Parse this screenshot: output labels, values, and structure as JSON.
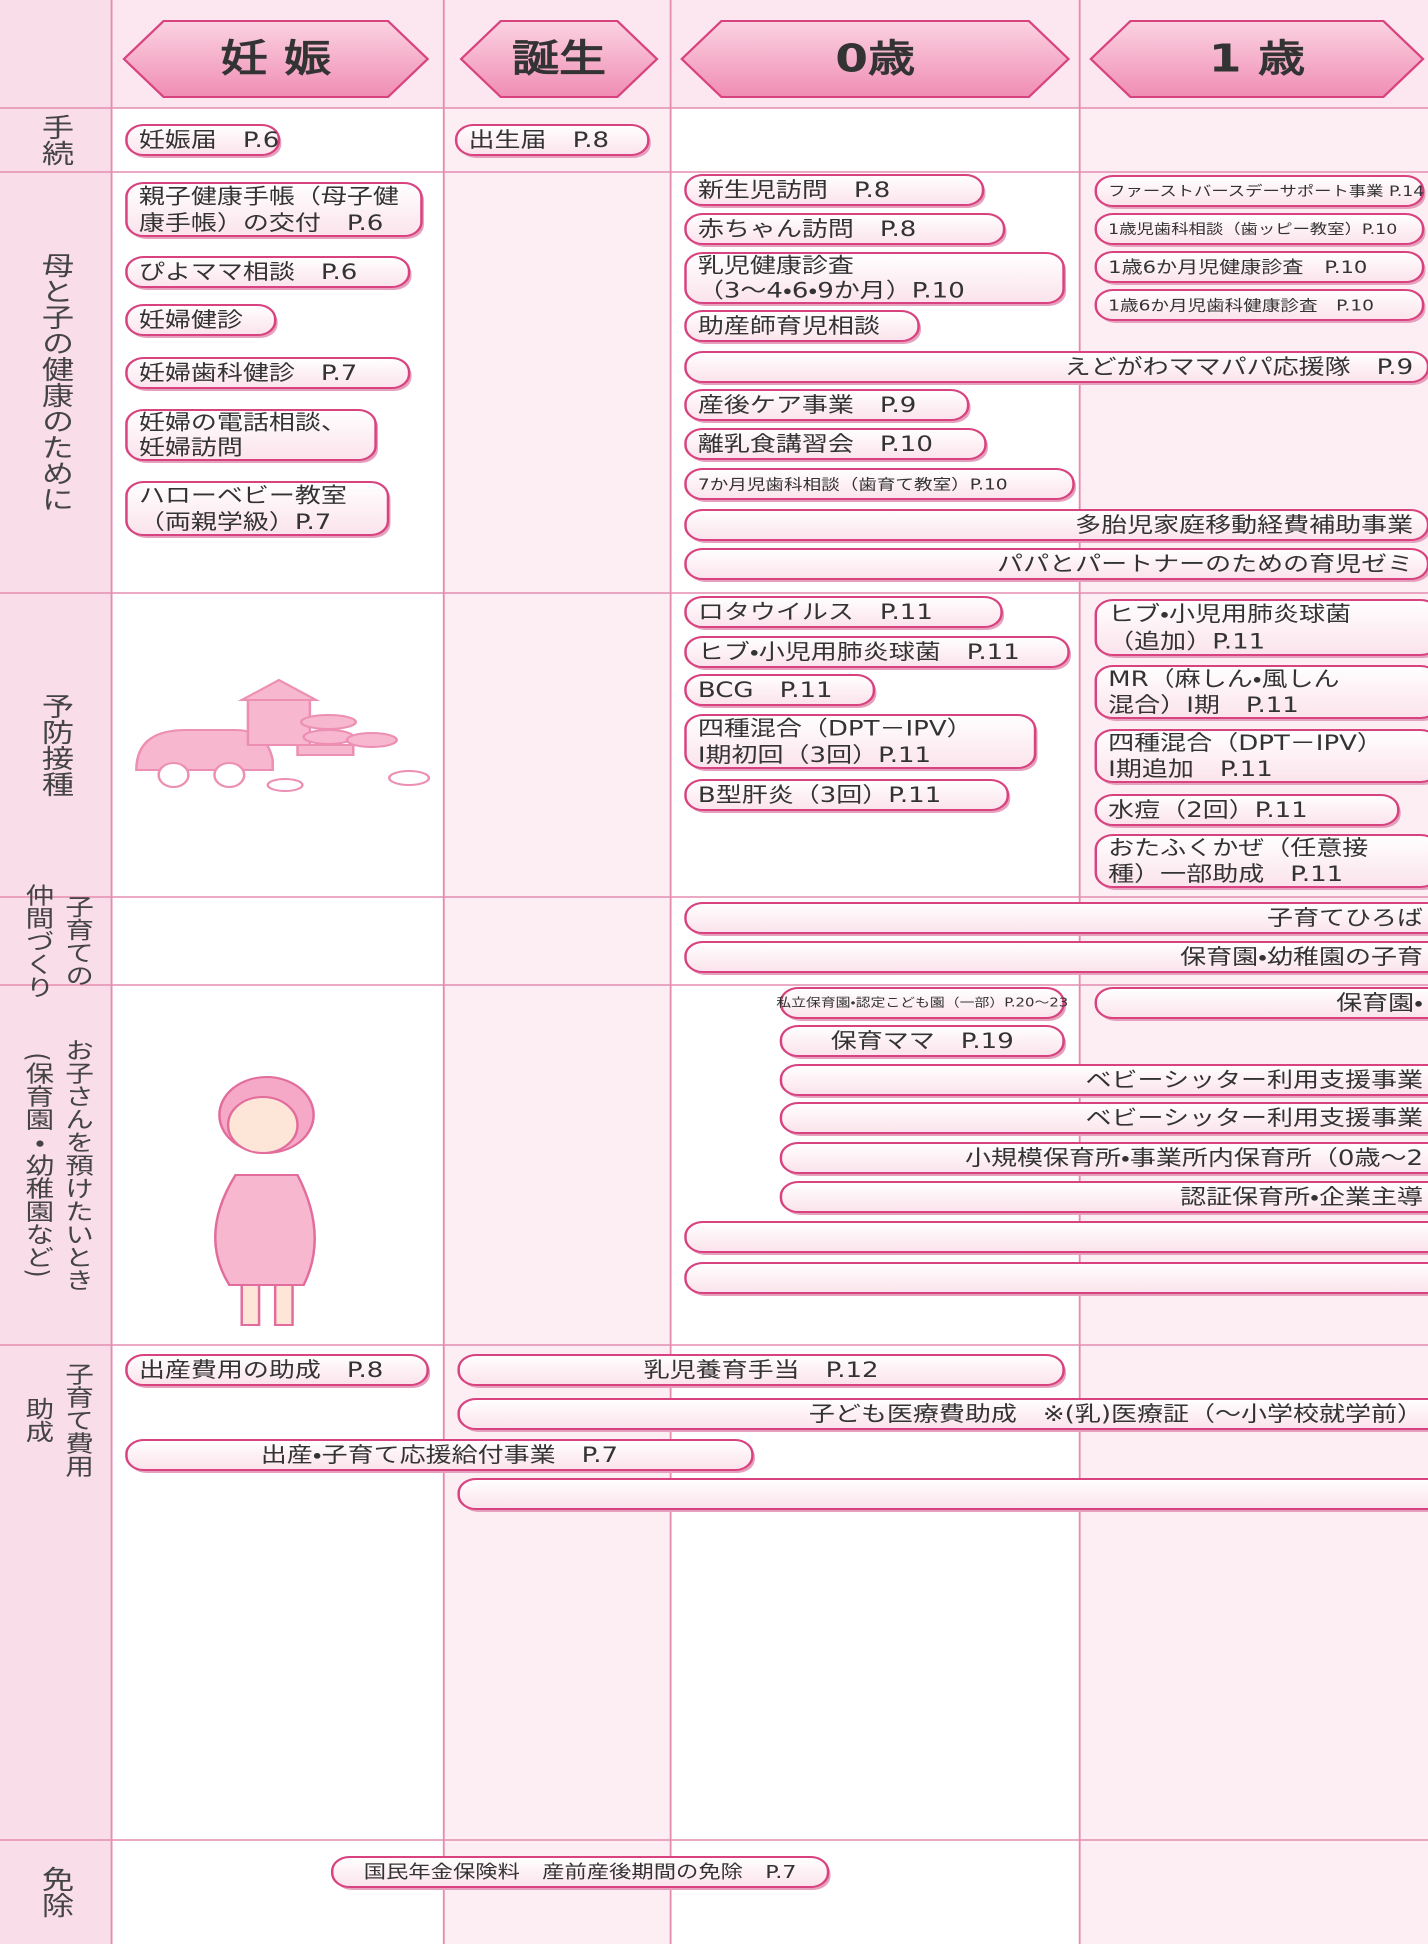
{
  "header": {
    "stages": [
      "妊 娠",
      "誕生",
      "0歳",
      "1 歳"
    ]
  },
  "rows": [
    {
      "label": [
        "手続"
      ],
      "items": [
        {
          "lines": [
            "妊娠届　P.6"
          ]
        },
        {
          "lines": [
            "出生届　P.8"
          ]
        }
      ]
    },
    {
      "label": [
        "母と子の健康のために"
      ],
      "items": [
        {
          "lines": [
            "親子健康手帳（母子健",
            "康手帳）の交付　P.6"
          ]
        },
        {
          "lines": [
            "ぴよママ相談　P.6"
          ]
        },
        {
          "lines": [
            "妊婦健診"
          ]
        },
        {
          "lines": [
            "妊婦歯科健診　P.7"
          ]
        },
        {
          "lines": [
            "妊婦の電話相談、",
            "妊婦訪問"
          ]
        },
        {
          "lines": [
            "ハローベビー教室",
            "（両親学級）P.7"
          ]
        },
        {
          "lines": [
            "新生児訪問　P.8"
          ]
        },
        {
          "lines": [
            "赤ちゃん訪問　P.8"
          ]
        },
        {
          "lines": [
            "乳児健康診査",
            "（3～4・6・9か月）P.10"
          ]
        },
        {
          "lines": [
            "助産師育児相談"
          ]
        },
        {
          "lines": [
            "えどがわママパパ応援隊　P.9"
          ]
        },
        {
          "lines": [
            "産後ケア事業　P.9"
          ]
        },
        {
          "lines": [
            "離乳食講習会　P.10"
          ]
        },
        {
          "lines": [
            "7か月児歯科相談（歯育て教室）P.10"
          ]
        },
        {
          "lines": [
            "多胎児家庭移動経費補助事業"
          ]
        },
        {
          "lines": [
            "パパとパートナーのための育児ゼミ"
          ]
        },
        {
          "lines": [
            "ファーストバースデーサポート事業 P.14"
          ]
        },
        {
          "lines": [
            "1歳児歯科相談（歯ッピー教室）P.10"
          ]
        },
        {
          "lines": [
            "1歳6か月児健康診査　P.10"
          ]
        },
        {
          "lines": [
            "1歳6か月児歯科健康診査　P.10"
          ]
        }
      ]
    },
    {
      "label": [
        "予防接種"
      ],
      "items": [
        {
          "lines": [
            "ロタウイルス　P.11"
          ]
        },
        {
          "lines": [
            "ヒブ・小児用肺炎球菌　P.11"
          ]
        },
        {
          "lines": [
            "BCG　P.11"
          ]
        },
        {
          "lines": [
            "四種混合（DPT－IPV）",
            "Ⅰ期初回（3回）P.11"
          ]
        },
        {
          "lines": [
            "B型肝炎（3回）P.11"
          ]
        },
        {
          "lines": [
            "ヒブ・小児用肺炎球菌",
            "（追加）P.11"
          ]
        },
        {
          "lines": [
            "MR（麻しん・風しん",
            "混合）Ⅰ期　P.11"
          ]
        },
        {
          "lines": [
            "四種混合（DPT－IPV）",
            "Ⅰ期追加　P.11"
          ]
        },
        {
          "lines": [
            "水痘（2回）P.11"
          ]
        },
        {
          "lines": [
            "おたふくかぜ（任意接",
            "種）一部助成　P.11"
          ]
        }
      ]
    },
    {
      "label": [
        "子育ての",
        "仲間づくり"
      ],
      "items": [
        {
          "lines": [
            "子育てひろば"
          ]
        },
        {
          "lines": [
            "保育園・幼稚園の子育"
          ]
        }
      ]
    },
    {
      "label": [
        "お子さんを預けたいとき",
        "(保育園・幼稚園など)"
      ],
      "items": [
        {
          "lines": [
            "私立保育園・認定こども園（一部）P.20～23"
          ]
        },
        {
          "lines": [
            "保育園・"
          ]
        },
        {
          "lines": [
            "保育ママ　P.19"
          ]
        },
        {
          "lines": [
            "ベビーシッター利用支援事業"
          ]
        },
        {
          "lines": [
            "ベビーシッター利用支援事業"
          ]
        },
        {
          "lines": [
            "小規模保育所・事業所内保育所（0歳～2"
          ]
        },
        {
          "lines": [
            "認証保育所・企業主導"
          ]
        }
      ]
    },
    {
      "label": [
        "子育て費用",
        "助成"
      ],
      "items": [
        {
          "lines": [
            "出産費用の助成　P.8"
          ]
        },
        {
          "lines": [
            "乳児養育手当　P.12"
          ]
        },
        {
          "lines": [
            "子ども医療費助成　※(乳)医療証（～小学校就学前）"
          ]
        },
        {
          "lines": [
            "出産・子育て応援給付事業　P.7"
          ]
        }
      ]
    },
    {
      "label": [
        "免除"
      ],
      "items": [
        {
          "lines": [
            "国民年金保険料　産前産後期間の免除　P.7"
          ]
        }
      ]
    }
  ]
}
